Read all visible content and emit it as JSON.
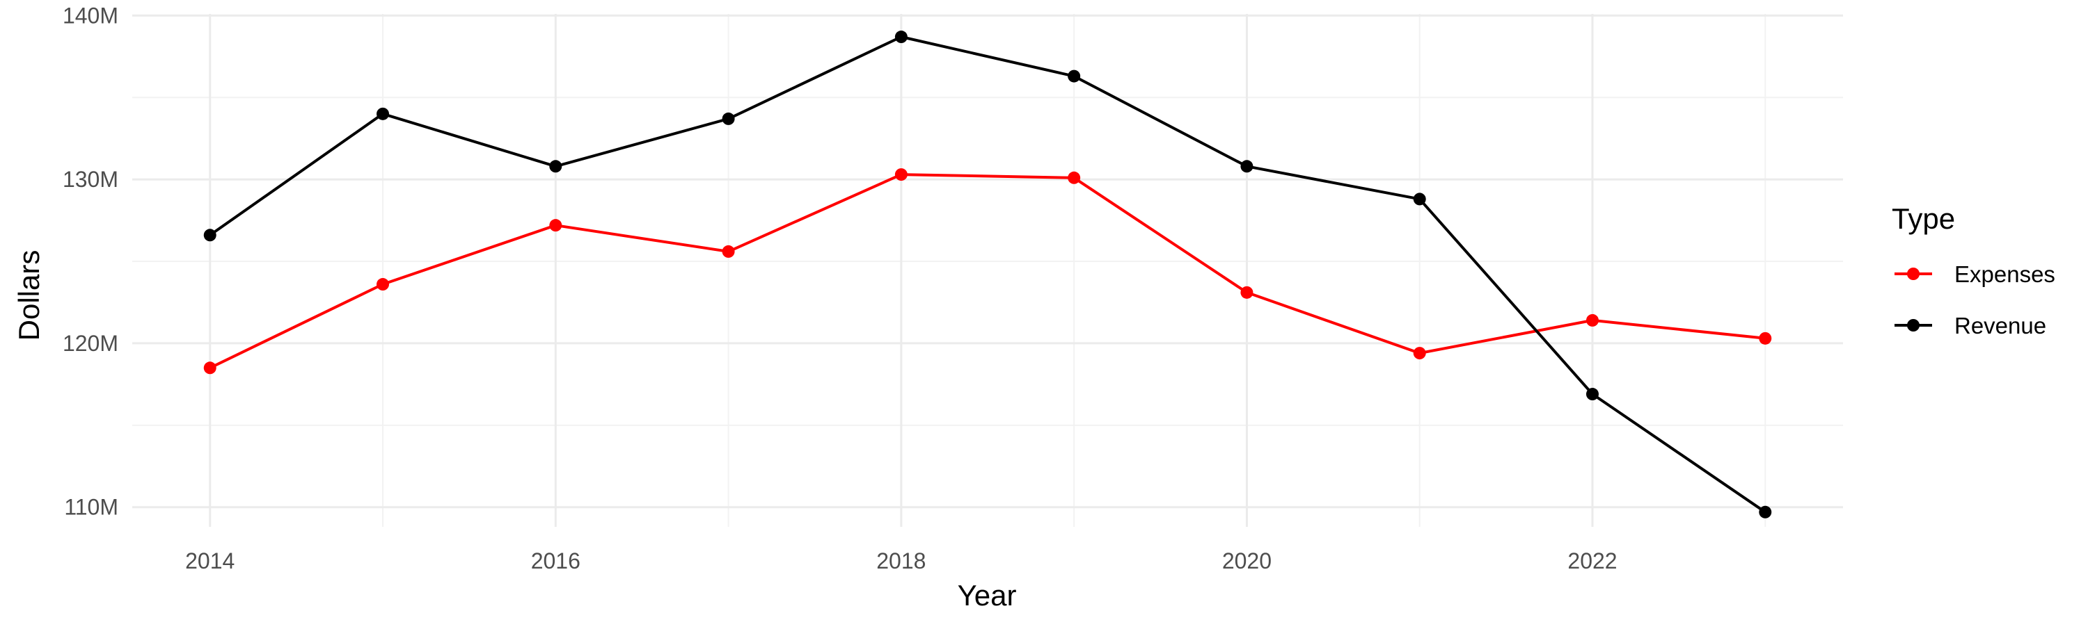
{
  "chart_data": {
    "type": "line",
    "title": "",
    "xlabel": "Year",
    "ylabel": "Dollars",
    "x": [
      2014,
      2015,
      2016,
      2017,
      2018,
      2019,
      2020,
      2021,
      2022,
      2023
    ],
    "xlim": [
      2013.55,
      2023.45
    ],
    "ylim": [
      108.8,
      140.1
    ],
    "x_ticks": [
      2014,
      2016,
      2018,
      2020,
      2022
    ],
    "x_tick_labels": [
      "2014",
      "2016",
      "2018",
      "2020",
      "2022"
    ],
    "y_ticks": [
      110,
      120,
      130,
      140
    ],
    "y_tick_labels": [
      "110M",
      "120M",
      "130M",
      "140M"
    ],
    "y_unit": "millions of dollars",
    "grid": true,
    "legend": {
      "title": "Type",
      "placement": "right"
    },
    "series": [
      {
        "name": "Expenses",
        "color": "#ff0000",
        "values": [
          118.5,
          123.6,
          127.2,
          125.6,
          130.3,
          130.1,
          123.1,
          119.4,
          121.4,
          120.3
        ]
      },
      {
        "name": "Revenue",
        "color": "#000000",
        "values": [
          126.6,
          134.0,
          130.8,
          133.7,
          138.7,
          136.3,
          130.8,
          128.8,
          116.9,
          109.7
        ]
      }
    ]
  }
}
